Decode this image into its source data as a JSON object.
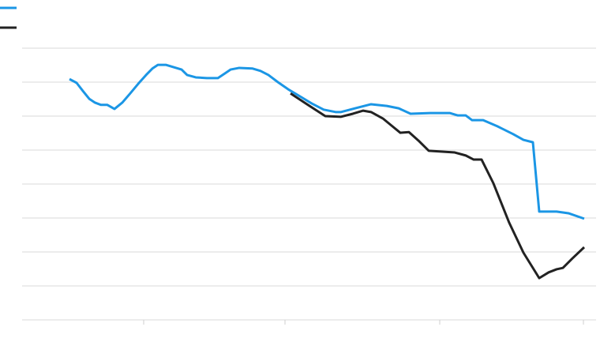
{
  "chart_data": {
    "type": "line",
    "xlim": [
      0,
      727
    ],
    "xticks": [
      154,
      333,
      529,
      711
    ],
    "ylim": [
      0,
      8
    ],
    "yticks": [
      0,
      1,
      2,
      3,
      4,
      5,
      6,
      7,
      8
    ],
    "grid": true,
    "legend": "top-left",
    "series": [
      {
        "color": "#1b96e5",
        "x": [
          60,
          69,
          77,
          85,
          92,
          100,
          108,
          117,
          127,
          137,
          147,
          157,
          165,
          172,
          182,
          192,
          202,
          209,
          220,
          234,
          248,
          257,
          264,
          275,
          292,
          302,
          312,
          324,
          337,
          352,
          367,
          382,
          397,
          404,
          422,
          442,
          462,
          477,
          492,
          517,
          542,
          552,
          562,
          570,
          584,
          602,
          622,
          635,
          647,
          655,
          677,
          692,
          712
        ],
        "values": [
          7.09,
          6.98,
          6.74,
          6.51,
          6.4,
          6.33,
          6.33,
          6.21,
          6.4,
          6.67,
          6.95,
          7.21,
          7.4,
          7.51,
          7.51,
          7.44,
          7.37,
          7.21,
          7.14,
          7.12,
          7.12,
          7.26,
          7.37,
          7.42,
          7.4,
          7.33,
          7.21,
          7.0,
          6.79,
          6.58,
          6.37,
          6.19,
          6.12,
          6.12,
          6.23,
          6.35,
          6.3,
          6.23,
          6.07,
          6.09,
          6.09,
          6.02,
          6.02,
          5.88,
          5.88,
          5.7,
          5.47,
          5.3,
          5.23,
          3.19,
          3.19,
          3.14,
          2.98
        ]
      },
      {
        "color": "#222222",
        "x": [
          340,
          362,
          384,
          404,
          419,
          432,
          442,
          457,
          469,
          479,
          490,
          502,
          515,
          548,
          562,
          572,
          582,
          597,
          617,
          635,
          655,
          667,
          677,
          685,
          697,
          712
        ],
        "values": [
          6.67,
          6.33,
          6.0,
          5.98,
          6.07,
          6.16,
          6.12,
          5.93,
          5.7,
          5.51,
          5.53,
          5.28,
          4.98,
          4.93,
          4.84,
          4.72,
          4.72,
          4.02,
          2.86,
          1.98,
          1.23,
          1.4,
          1.49,
          1.53,
          1.81,
          2.14
        ]
      }
    ]
  }
}
